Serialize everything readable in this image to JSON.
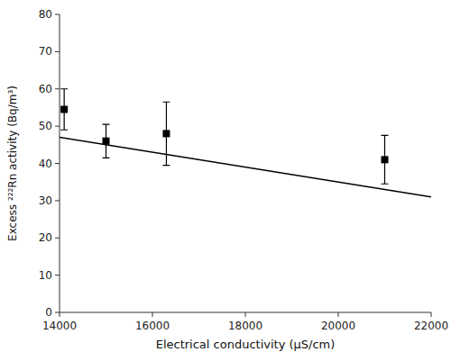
{
  "chart_data": {
    "type": "scatter",
    "xlabel": "Electrical conductivity (μS/cm)",
    "ylabel": "Excess ²²²Rn activity (Bq/m³)",
    "xlim": [
      14000,
      22000
    ],
    "ylim": [
      0,
      80
    ],
    "xticks": [
      14000,
      16000,
      18000,
      20000,
      22000
    ],
    "yticks": [
      0,
      10,
      20,
      30,
      40,
      50,
      60,
      70,
      80
    ],
    "series": [
      {
        "type": "scatter",
        "x": [
          14100,
          15000,
          16300,
          21000
        ],
        "values": [
          54.5,
          46.0,
          48.0,
          41.0
        ],
        "errors": [
          5.5,
          4.5,
          8.5,
          6.5
        ],
        "color": "black",
        "marker": "square"
      },
      {
        "type": "line",
        "x": [
          14000,
          22000
        ],
        "values": [
          47,
          31
        ],
        "color": "black"
      }
    ]
  }
}
